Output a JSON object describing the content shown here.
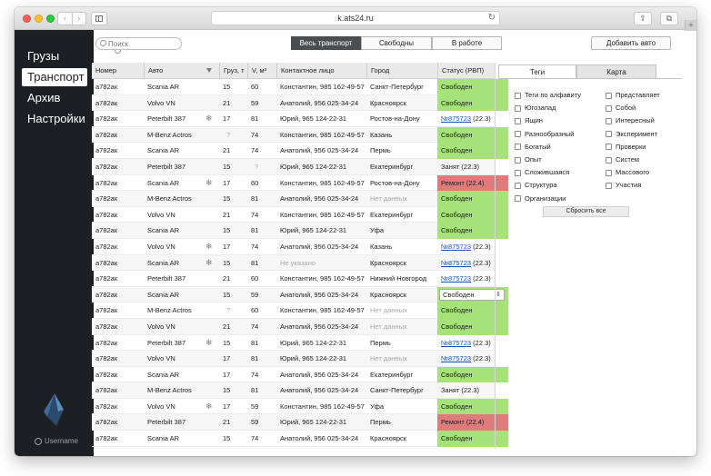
{
  "browser": {
    "url": "k.ats24.ru"
  },
  "sidebar": {
    "items": [
      {
        "label": "Грузы",
        "active": false
      },
      {
        "label": "Транспорт",
        "active": true
      },
      {
        "label": "Архив",
        "active": false
      },
      {
        "label": "Настройки",
        "active": false
      }
    ],
    "username": "Username"
  },
  "toolbar": {
    "search_placeholder": "Поиск",
    "filters": [
      "Весь транспорт",
      "Свободны",
      "В работе"
    ],
    "active_filter": "Весь транспорт",
    "add_label": "Добавить авто"
  },
  "table": {
    "columns": [
      "Номер",
      "Авто",
      "Груз, т",
      "V, м³",
      "Контактное лицо",
      "Город",
      "Статус (РВП)"
    ],
    "rows": [
      {
        "num": "а782ак",
        "car": "Scania AR",
        "snow": false,
        "load": "15",
        "vol": "60",
        "contact": "Константин, 985 162-49-57",
        "city": "Санкт-Петербург",
        "status_type": "free",
        "status": "Свободен"
      },
      {
        "num": "а782ак",
        "car": "Volvo VN",
        "snow": false,
        "load": "21",
        "vol": "59",
        "contact": "Анатолий, 956 025-34-24",
        "city": "Красноярск",
        "status_type": "free",
        "status": "Свободен"
      },
      {
        "num": "а782ак",
        "car": "Peterbilt 387",
        "snow": true,
        "load": "17",
        "vol": "81",
        "contact": "Юрий, 965 124-22-31",
        "city": "Ростов-на-Дону",
        "status_type": "link",
        "status": "№875723",
        "status_extra": "(22.3)"
      },
      {
        "num": "а782ак",
        "car": "M-Benz Actros",
        "snow": false,
        "load": "?",
        "vol": "74",
        "contact": "Константин, 985 162-49-57",
        "city": "Казань",
        "status_type": "free",
        "status": "Свободен"
      },
      {
        "num": "а782ак",
        "car": "Scania AR",
        "snow": false,
        "load": "21",
        "vol": "74",
        "contact": "Анатолий, 956 025-34-24",
        "city": "Пермь",
        "status_type": "free",
        "status": "Свободен"
      },
      {
        "num": "а782ак",
        "car": "Peterbilt 387",
        "snow": false,
        "load": "15",
        "vol": "?",
        "contact": "Юрий, 965 124-22-31",
        "city": "Екатеринбург",
        "status_type": "text",
        "status": "Занят (22.3)"
      },
      {
        "num": "а782ак",
        "car": "Scania AR",
        "snow": true,
        "load": "17",
        "vol": "60",
        "contact": "Константин, 985 162-49-57",
        "city": "Ростов-на-Дону",
        "status_type": "repair",
        "status": "Ремонт (22.4)"
      },
      {
        "num": "а782ак",
        "car": "M-Benz Actros",
        "snow": false,
        "load": "15",
        "vol": "81",
        "contact": "Анатолий, 956 025-34-24",
        "city": "Нет данных",
        "city_muted": true,
        "status_type": "free",
        "status": "Свободен"
      },
      {
        "num": "а782ак",
        "car": "Volvo VN",
        "snow": false,
        "load": "21",
        "vol": "74",
        "contact": "Константин, 985 162-49-57",
        "city": "Екатеринбург",
        "status_type": "free",
        "status": "Свободен"
      },
      {
        "num": "а782ак",
        "car": "Scania AR",
        "snow": false,
        "load": "15",
        "vol": "81",
        "contact": "Юрий, 965 124-22-31",
        "city": "Уфа",
        "status_type": "free",
        "status": "Свободен"
      },
      {
        "num": "а782ак",
        "car": "Volvo VN",
        "snow": true,
        "load": "17",
        "vol": "74",
        "contact": "Анатолий, 956 025-34-24",
        "city": "Казань",
        "status_type": "link",
        "status": "№875723",
        "status_extra": "(22.3)"
      },
      {
        "num": "а782ак",
        "car": "Scania AR",
        "snow": true,
        "load": "15",
        "vol": "81",
        "contact": "Не указано",
        "contact_muted": true,
        "city": "Красноярск",
        "status_type": "link",
        "status": "№875723",
        "status_extra": "(22.3)"
      },
      {
        "num": "а782ак",
        "car": "Peterbilt 387",
        "snow": false,
        "load": "21",
        "vol": "60",
        "contact": "Константин, 985 162-49-57",
        "city": "Нижний Новгород",
        "status_type": "link",
        "status": "№875723",
        "status_extra": "(22.3)"
      },
      {
        "num": "а782ак",
        "car": "Scania AR",
        "snow": false,
        "load": "15",
        "vol": "59",
        "contact": "Анатолий, 956 025-34-24",
        "city": "Красноярск",
        "status_type": "select",
        "status": "Свободен"
      },
      {
        "num": "а782ак",
        "car": "M-Benz Actros",
        "snow": false,
        "load": "?",
        "vol": "60",
        "contact": "Константин, 985 162-49-57",
        "city": "Нет данных",
        "city_muted": true,
        "status_type": "free",
        "status": "Свободен"
      },
      {
        "num": "а782ак",
        "car": "Volvo VN",
        "snow": false,
        "load": "21",
        "vol": "74",
        "contact": "Анатолий, 956 025-34-24",
        "city": "Нет данных",
        "city_muted": true,
        "status_type": "free",
        "status": "Свободен"
      },
      {
        "num": "а782ак",
        "car": "Peterbilt 387",
        "snow": true,
        "load": "15",
        "vol": "81",
        "contact": "Юрий, 965 124-22-31",
        "city": "Пермь",
        "status_type": "link",
        "status": "№875723",
        "status_extra": "(22.3)"
      },
      {
        "num": "а782ак",
        "car": "Volvo VN",
        "snow": false,
        "load": "17",
        "vol": "81",
        "contact": "Юрий, 965 124-22-31",
        "city": "Нет данных",
        "city_muted": true,
        "status_type": "link",
        "status": "№875723",
        "status_extra": "(22.3)"
      },
      {
        "num": "а782ак",
        "car": "Scania AR",
        "snow": false,
        "load": "17",
        "vol": "74",
        "contact": "Анатолий, 956 025-34-24",
        "city": "Екатеринбург",
        "status_type": "free",
        "status": "Свободен"
      },
      {
        "num": "а782ак",
        "car": "M-Benz Actros",
        "snow": false,
        "load": "15",
        "vol": "81",
        "contact": "Анатолий, 956 025-34-24",
        "city": "Санкт-Петербург",
        "status_type": "text",
        "status": "Занят (22.3)"
      },
      {
        "num": "а782ак",
        "car": "Volvo VN",
        "snow": true,
        "load": "17",
        "vol": "59",
        "contact": "Константин, 985 162-49-57",
        "city": "Уфа",
        "status_type": "free",
        "status": "Свободен"
      },
      {
        "num": "а782ак",
        "car": "Peterbilt 387",
        "snow": false,
        "load": "21",
        "vol": "59",
        "contact": "Юрий, 965 124-22-31",
        "city": "Пермь",
        "status_type": "repair",
        "status": "Ремонт (22.4)"
      },
      {
        "num": "а782ак",
        "car": "Scania AR",
        "snow": false,
        "load": "15",
        "vol": "74",
        "contact": "Анатолий, 956 025-34-24",
        "city": "Красноярск",
        "status_type": "free",
        "status": "Свободен"
      }
    ]
  },
  "panel": {
    "tabs": [
      "Теги",
      "Карта"
    ],
    "active_tab": "Теги",
    "tags_left": [
      "Теги по алфавиту",
      "Югозапад",
      "Ящин",
      "Разнообразный",
      "Богатый",
      "Опыт",
      "Сложившаяся",
      "Структура",
      "Организации"
    ],
    "tags_right": [
      "Представляет",
      "Собой",
      "Интересный",
      "Эксперимент",
      "Проверки",
      "Систем",
      "Массового",
      "Участия"
    ],
    "reset_label": "Сбросить все"
  },
  "colors": {
    "sidebar_bg": "#1c1f24",
    "free": "#a6e27a",
    "repair": "#df7b7b",
    "link": "#1f4fbf"
  }
}
